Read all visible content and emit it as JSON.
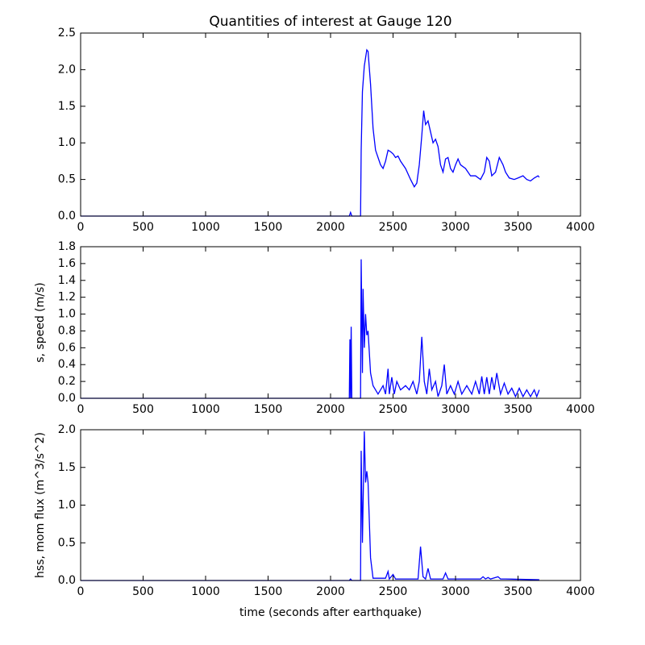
{
  "chart_data": [
    {
      "type": "line",
      "title": "Quantities of interest at Gauge 120",
      "color": "#0000ff",
      "x": [
        0,
        2150,
        2160,
        2170,
        2240,
        2245,
        2255,
        2270,
        2290,
        2300,
        2320,
        2340,
        2360,
        2380,
        2400,
        2420,
        2440,
        2460,
        2480,
        2500,
        2520,
        2540,
        2560,
        2600,
        2640,
        2670,
        2690,
        2710,
        2730,
        2745,
        2760,
        2780,
        2800,
        2820,
        2840,
        2860,
        2880,
        2900,
        2920,
        2940,
        2960,
        2980,
        3000,
        3020,
        3040,
        3080,
        3120,
        3160,
        3200,
        3230,
        3250,
        3270,
        3290,
        3320,
        3350,
        3380,
        3400,
        3430,
        3470,
        3500,
        3540,
        3570,
        3600,
        3630,
        3660,
        3670
      ],
      "values": [
        0,
        0,
        0.05,
        0,
        0,
        0.9,
        1.7,
        2.05,
        2.27,
        2.25,
        1.8,
        1.2,
        0.9,
        0.8,
        0.7,
        0.65,
        0.75,
        0.9,
        0.88,
        0.85,
        0.8,
        0.82,
        0.75,
        0.65,
        0.5,
        0.4,
        0.45,
        0.7,
        1.1,
        1.44,
        1.25,
        1.3,
        1.15,
        1.0,
        1.05,
        0.95,
        0.7,
        0.6,
        0.78,
        0.8,
        0.65,
        0.6,
        0.7,
        0.78,
        0.7,
        0.65,
        0.55,
        0.55,
        0.5,
        0.6,
        0.8,
        0.75,
        0.55,
        0.6,
        0.8,
        0.7,
        0.6,
        0.52,
        0.5,
        0.52,
        0.55,
        0.5,
        0.48,
        0.52,
        0.55,
        0.53
      ],
      "xlim": [
        0,
        4000
      ],
      "xticks": [
        0,
        500,
        1000,
        1500,
        2000,
        2500,
        3000,
        3500,
        4000
      ],
      "ylim": [
        0,
        2.5
      ],
      "yticks": [
        {
          "value": 0,
          "label": "0.0"
        },
        0.5,
        {
          "value": 1,
          "label": "1.0"
        },
        1.5,
        {
          "value": 2,
          "label": "2.0"
        },
        2.5
      ]
    },
    {
      "type": "line",
      "ylabel": "s, speed (m/s)",
      "color": "#0000ff",
      "x": [
        0,
        2150,
        2155,
        2160,
        2165,
        2170,
        2240,
        2245,
        2255,
        2260,
        2270,
        2280,
        2290,
        2300,
        2320,
        2340,
        2380,
        2420,
        2440,
        2460,
        2470,
        2490,
        2510,
        2530,
        2560,
        2600,
        2630,
        2660,
        2690,
        2710,
        2730,
        2750,
        2770,
        2790,
        2810,
        2840,
        2860,
        2890,
        2910,
        2930,
        2960,
        2990,
        3020,
        3050,
        3090,
        3130,
        3160,
        3190,
        3210,
        3230,
        3250,
        3270,
        3290,
        3310,
        3330,
        3360,
        3390,
        3420,
        3450,
        3480,
        3510,
        3540,
        3570,
        3600,
        3630,
        3650,
        3670
      ],
      "values": [
        0,
        0,
        0.7,
        0,
        0.85,
        0,
        0,
        1.65,
        0.3,
        1.3,
        0.6,
        1.0,
        0.75,
        0.8,
        0.3,
        0.15,
        0.05,
        0.15,
        0.05,
        0.35,
        0.05,
        0.25,
        0.05,
        0.2,
        0.1,
        0.15,
        0.1,
        0.2,
        0.05,
        0.2,
        0.73,
        0.2,
        0.05,
        0.35,
        0.1,
        0.2,
        0.02,
        0.15,
        0.4,
        0.05,
        0.15,
        0.05,
        0.2,
        0.05,
        0.15,
        0.05,
        0.2,
        0.05,
        0.26,
        0.05,
        0.25,
        0.05,
        0.25,
        0.1,
        0.3,
        0.05,
        0.18,
        0.05,
        0.12,
        0.02,
        0.12,
        0.02,
        0.1,
        0.02,
        0.1,
        0.02,
        0.1
      ],
      "xlim": [
        0,
        4000
      ],
      "xticks": [
        0,
        500,
        1000,
        1500,
        2000,
        2500,
        3000,
        3500,
        4000
      ],
      "ylim": [
        0,
        1.8
      ],
      "yticks": [
        {
          "value": 0,
          "label": "0.0"
        },
        0.2,
        0.4,
        0.6,
        0.8,
        {
          "value": 1,
          "label": "1.0"
        },
        1.2,
        1.4,
        1.6,
        1.8
      ]
    },
    {
      "type": "line",
      "ylabel": "hss, mom flux (m^3/s^2)",
      "xlabel": "time (seconds after earthquake)",
      "color": "#0000ff",
      "x": [
        0,
        2150,
        2160,
        2170,
        2240,
        2245,
        2255,
        2270,
        2280,
        2290,
        2300,
        2320,
        2340,
        2440,
        2460,
        2470,
        2500,
        2520,
        2700,
        2720,
        2740,
        2760,
        2780,
        2800,
        2900,
        2920,
        2940,
        3200,
        3220,
        3240,
        3260,
        3280,
        3340,
        3360,
        3400,
        3670
      ],
      "values": [
        0,
        0,
        0.02,
        0,
        0,
        1.72,
        0.5,
        1.98,
        1.3,
        1.45,
        1.3,
        0.3,
        0.03,
        0.03,
        0.12,
        0.02,
        0.08,
        0.02,
        0.02,
        0.45,
        0.05,
        0.02,
        0.16,
        0.02,
        0.02,
        0.1,
        0.02,
        0.02,
        0.05,
        0.02,
        0.04,
        0.02,
        0.05,
        0.02,
        0.02,
        0.01
      ],
      "xlim": [
        0,
        4000
      ],
      "xticks": [
        0,
        500,
        1000,
        1500,
        2000,
        2500,
        3000,
        3500,
        4000
      ],
      "ylim": [
        0,
        2
      ],
      "yticks": [
        {
          "value": 0,
          "label": "0.0"
        },
        0.5,
        {
          "value": 1,
          "label": "1.0"
        },
        1.5,
        {
          "value": 2,
          "label": "2.0"
        }
      ]
    }
  ]
}
